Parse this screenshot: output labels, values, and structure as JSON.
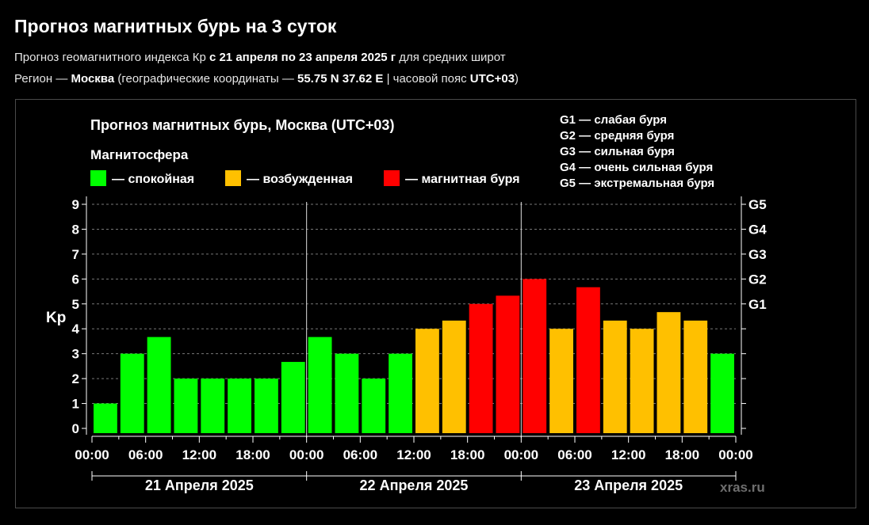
{
  "page": {
    "title": "Прогноз магнитных бурь на 3 суток",
    "subtitle": {
      "prefix": "Прогноз геомагнитного индекса Кр ",
      "period": "с 21 апреля по 23 апреля 2025 г",
      "suffix": " для средних широт"
    },
    "region": {
      "label": "Регион — ",
      "city": "Москва",
      "coords_prefix": " (географические координаты — ",
      "coords": "55.75 N 37.62 E",
      "tz_prefix": " | часовой пояс ",
      "tz": "UTC+03",
      "close": ")"
    }
  },
  "colors": {
    "calm": "#00ff00",
    "excited": "#ffc000",
    "storm": "#ff0000",
    "background": "#000000",
    "text": "#ffffff"
  },
  "chart_data": {
    "type": "bar",
    "title": "Прогноз магнитных бурь, Москва (UTC+03)",
    "legend_title": "Магнитосфера",
    "legend": [
      {
        "key": "calm",
        "label": "— спокойная"
      },
      {
        "key": "excited",
        "label": "— возбужденная"
      },
      {
        "key": "storm",
        "label": "— магнитная буря"
      }
    ],
    "g_scale": [
      "G1 — слабая буря",
      "G2 — средняя буря",
      "G3 — сильная буря",
      "G4 — очень сильная буря",
      "G5 — экстремальная буря"
    ],
    "ylabel": "Kp",
    "ylim": [
      0,
      9
    ],
    "y_ticks": [
      "0",
      "1",
      "2",
      "3",
      "4",
      "5",
      "6",
      "7",
      "8",
      "9"
    ],
    "right_ticks": [
      {
        "value": 5,
        "label": "G1"
      },
      {
        "value": 6,
        "label": "G2"
      },
      {
        "value": 7,
        "label": "G3"
      },
      {
        "value": 8,
        "label": "G4"
      },
      {
        "value": 9,
        "label": "G5"
      }
    ],
    "x_tick_labels": [
      "00:00",
      "06:00",
      "12:00",
      "18:00",
      "00:00",
      "06:00",
      "12:00",
      "18:00",
      "00:00",
      "06:00",
      "12:00",
      "18:00",
      "00:00"
    ],
    "days": [
      "21 Апреля 2025",
      "22 Апреля 2025",
      "23 Апреля 2025"
    ],
    "grid": true,
    "bars": [
      {
        "start": "2025-04-21 00:00",
        "kp": 1.0,
        "level": "calm"
      },
      {
        "start": "2025-04-21 03:00",
        "kp": 3.0,
        "level": "calm"
      },
      {
        "start": "2025-04-21 06:00",
        "kp": 3.67,
        "level": "calm"
      },
      {
        "start": "2025-04-21 09:00",
        "kp": 2.0,
        "level": "calm"
      },
      {
        "start": "2025-04-21 12:00",
        "kp": 2.0,
        "level": "calm"
      },
      {
        "start": "2025-04-21 15:00",
        "kp": 2.0,
        "level": "calm"
      },
      {
        "start": "2025-04-21 18:00",
        "kp": 2.0,
        "level": "calm"
      },
      {
        "start": "2025-04-21 21:00",
        "kp": 2.67,
        "level": "calm"
      },
      {
        "start": "2025-04-22 00:00",
        "kp": 3.67,
        "level": "calm"
      },
      {
        "start": "2025-04-22 03:00",
        "kp": 3.0,
        "level": "calm"
      },
      {
        "start": "2025-04-22 06:00",
        "kp": 2.0,
        "level": "calm"
      },
      {
        "start": "2025-04-22 09:00",
        "kp": 3.0,
        "level": "calm"
      },
      {
        "start": "2025-04-22 12:00",
        "kp": 4.0,
        "level": "excited"
      },
      {
        "start": "2025-04-22 15:00",
        "kp": 4.33,
        "level": "excited"
      },
      {
        "start": "2025-04-22 18:00",
        "kp": 5.0,
        "level": "storm"
      },
      {
        "start": "2025-04-22 21:00",
        "kp": 5.33,
        "level": "storm"
      },
      {
        "start": "2025-04-23 00:00",
        "kp": 6.0,
        "level": "storm"
      },
      {
        "start": "2025-04-23 03:00",
        "kp": 4.0,
        "level": "excited"
      },
      {
        "start": "2025-04-23 06:00",
        "kp": 5.67,
        "level": "storm"
      },
      {
        "start": "2025-04-23 09:00",
        "kp": 4.33,
        "level": "excited"
      },
      {
        "start": "2025-04-23 12:00",
        "kp": 4.0,
        "level": "excited"
      },
      {
        "start": "2025-04-23 15:00",
        "kp": 4.67,
        "level": "excited"
      },
      {
        "start": "2025-04-23 18:00",
        "kp": 4.33,
        "level": "excited"
      },
      {
        "start": "2025-04-23 21:00",
        "kp": 3.0,
        "level": "calm"
      }
    ],
    "watermark": "xras.ru"
  }
}
